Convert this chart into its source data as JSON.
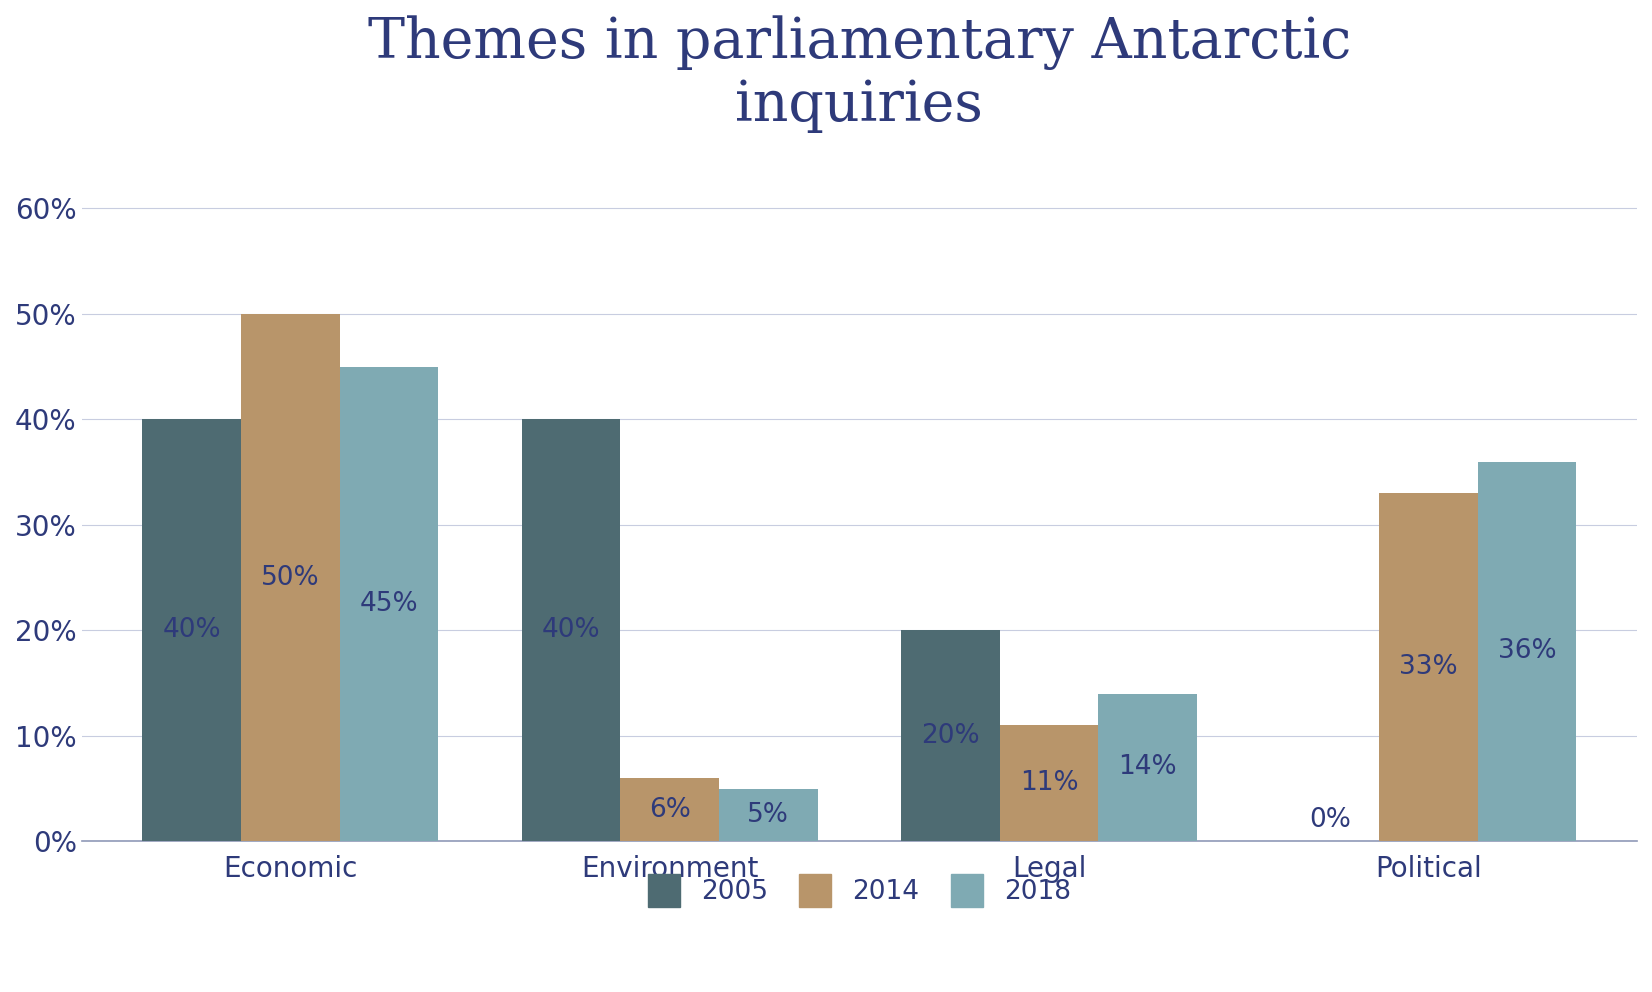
{
  "title": "Themes in parliamentary Antarctic\ninquiries",
  "categories": [
    "Economic",
    "Environment",
    "Legal",
    "Political"
  ],
  "series": {
    "2005": [
      40,
      40,
      20,
      0
    ],
    "2014": [
      50,
      6,
      11,
      33
    ],
    "2018": [
      45,
      5,
      14,
      36
    ]
  },
  "colors": {
    "2005": "#4e6b72",
    "2014": "#b8956a",
    "2018": "#7faab3"
  },
  "ylim": [
    0,
    65
  ],
  "yticks": [
    0,
    10,
    20,
    30,
    40,
    50,
    60
  ],
  "ytick_labels": [
    "0%",
    "10%",
    "20%",
    "30%",
    "40%",
    "50%",
    "60%"
  ],
  "title_color": "#2e3a7a",
  "axis_label_color": "#2e3a7a",
  "bar_label_color": "#2e3a7a",
  "background_color": "#ffffff",
  "title_fontsize": 40,
  "tick_fontsize": 20,
  "bar_label_fontsize": 19,
  "legend_fontsize": 19,
  "bar_width": 0.26,
  "bar_gap": 0.26
}
